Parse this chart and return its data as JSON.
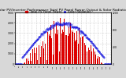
{
  "title": "Solar PV/Inverter Performance Total PV Panel Power Output & Solar Radiation",
  "title_fontsize": 3.2,
  "bg_color": "#d8d8d8",
  "plot_bg": "#ffffff",
  "n_points": 288,
  "red_color": "#dd0000",
  "blue_color": "#0000dd",
  "grid_color": "#999999",
  "ylim_left": [
    0,
    5000
  ],
  "ylim_right": [
    0,
    1200
  ],
  "legend_pv": "Total PV Panel Power",
  "legend_rad": "Solar Radiation",
  "legend_fontsize": 2.8,
  "tick_fontsize": 2.2,
  "bar_width": 0.7
}
